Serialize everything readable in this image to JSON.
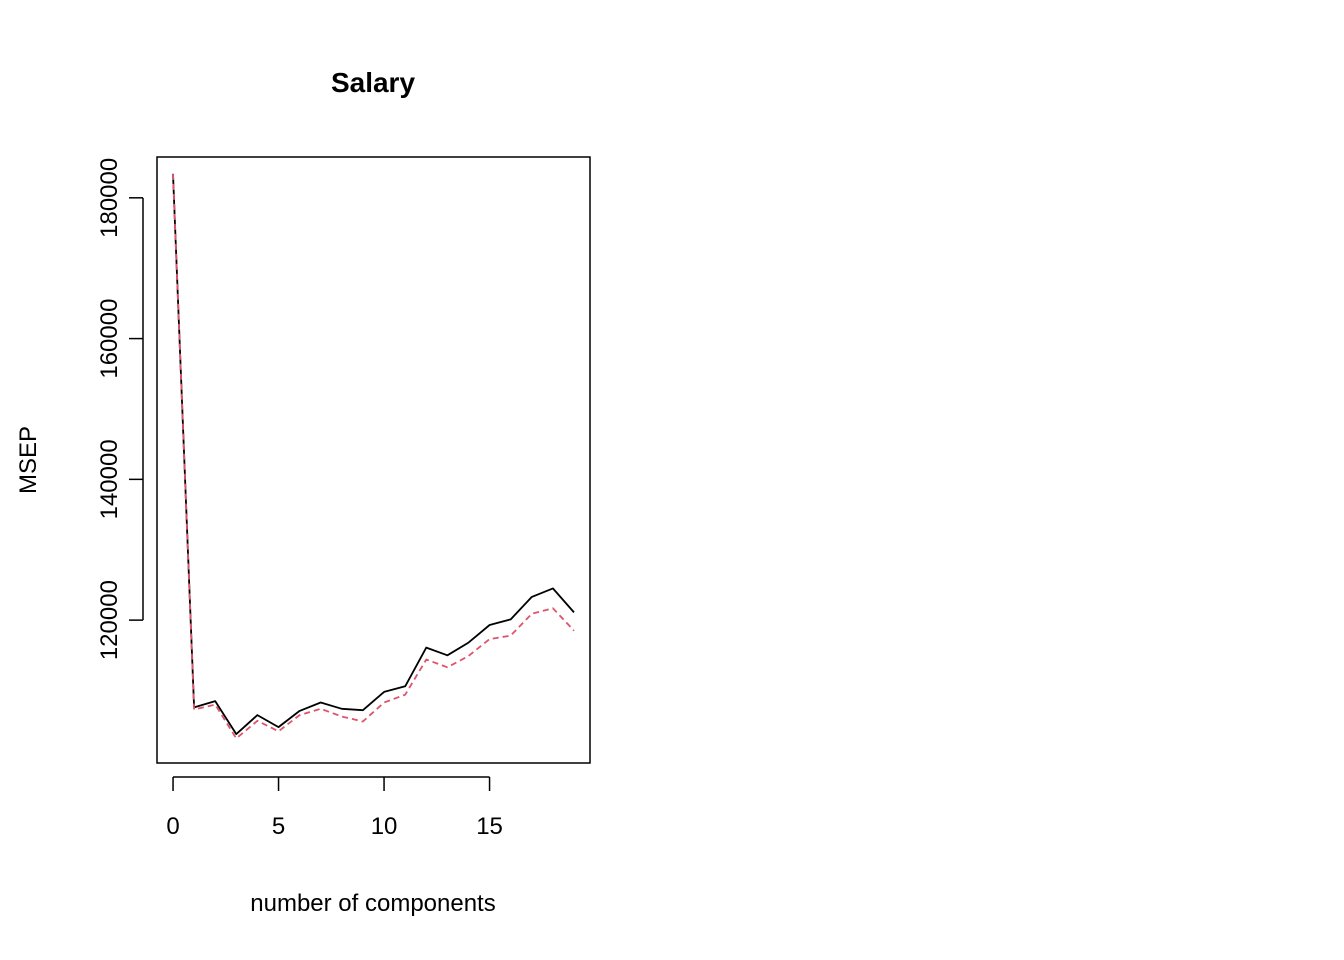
{
  "chart_data": {
    "type": "line",
    "title": "Salary",
    "xlabel": "number of components",
    "ylabel": "MSEP",
    "xlim": [
      -0.76,
      19.76
    ],
    "ylim": [
      99700,
      185800
    ],
    "x_ticks": [
      0,
      5,
      10,
      15
    ],
    "y_ticks": [
      120000,
      140000,
      160000,
      180000
    ],
    "x_tick_labels": [
      "0",
      "5",
      "10",
      "15"
    ],
    "y_tick_labels": [
      "120000",
      "140000",
      "160000",
      "180000"
    ],
    "grid": false,
    "legend": "none",
    "x": [
      0,
      1,
      2,
      3,
      4,
      5,
      6,
      7,
      8,
      9,
      10,
      11,
      12,
      13,
      14,
      15,
      16,
      17,
      18,
      19
    ],
    "series": [
      {
        "color": "#000000",
        "line_style": "solid",
        "values": [
          183400,
          107600,
          108500,
          103800,
          106500,
          104800,
          107100,
          108300,
          107400,
          107200,
          109800,
          110600,
          116100,
          115000,
          116800,
          119300,
          120100,
          123300,
          124500,
          121100
        ]
      },
      {
        "color": "#DF536B",
        "line_style": "dashed",
        "values": [
          183400,
          107300,
          108000,
          103200,
          105700,
          104200,
          106500,
          107400,
          106300,
          105600,
          108300,
          109400,
          114400,
          113300,
          114900,
          117300,
          117800,
          120900,
          121700,
          118500
        ]
      }
    ]
  }
}
